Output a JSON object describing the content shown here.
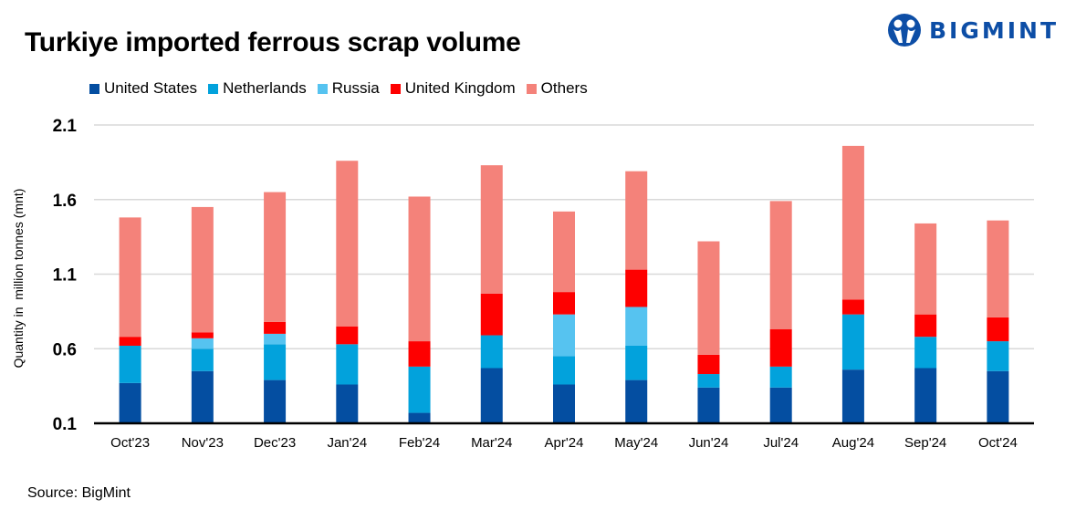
{
  "title": "Turkiye imported ferrous scrap volume",
  "logo": {
    "text": "BIGMINT",
    "color": "#0d4ea6"
  },
  "source": "Source: BigMint",
  "chart_data": {
    "type": "bar",
    "stacked": true,
    "title": "Turkiye imported ferrous scrap volume",
    "xlabel": "",
    "ylabel": "Quantity in  million tonnes (mnt)",
    "ylim": [
      0.1,
      2.1
    ],
    "yticks": [
      0.1,
      0.6,
      1.1,
      1.6,
      2.1
    ],
    "ytick_labels": [
      "0.1",
      "0.6",
      "1.1",
      "1.6",
      "2.1"
    ],
    "grid": true,
    "legend_position": "top",
    "categories": [
      "Oct'23",
      "Nov'23",
      "Dec'23",
      "Jan'24",
      "Feb'24",
      "Mar'24",
      "Apr'24",
      "May'24",
      "Jun'24",
      "Jul'24",
      "Aug'24",
      "Sep'24",
      "Oct'24"
    ],
    "series": [
      {
        "name": "United States",
        "color": "#044ea1",
        "values": [
          0.37,
          0.45,
          0.39,
          0.36,
          0.17,
          0.47,
          0.36,
          0.39,
          0.34,
          0.34,
          0.46,
          0.47,
          0.45
        ]
      },
      {
        "name": "Netherlands",
        "color": "#02a2dc",
        "values": [
          0.25,
          0.15,
          0.24,
          0.27,
          0.31,
          0.22,
          0.19,
          0.23,
          0.09,
          0.14,
          0.37,
          0.21,
          0.2
        ]
      },
      {
        "name": "Russia",
        "color": "#56c3f0",
        "values": [
          0,
          0.07,
          0.07,
          0,
          0,
          0,
          0.28,
          0.26,
          0,
          0,
          0,
          0,
          0
        ]
      },
      {
        "name": "United Kingdom",
        "color": "#fe0000",
        "values": [
          0.06,
          0.04,
          0.08,
          0.12,
          0.17,
          0.28,
          0.15,
          0.25,
          0.13,
          0.25,
          0.1,
          0.15,
          0.16
        ]
      },
      {
        "name": "Others",
        "color": "#f4827a",
        "values": [
          0.8,
          0.84,
          0.87,
          1.11,
          0.97,
          0.86,
          0.54,
          0.66,
          0.76,
          0.86,
          1.03,
          0.61,
          0.65
        ]
      }
    ]
  }
}
